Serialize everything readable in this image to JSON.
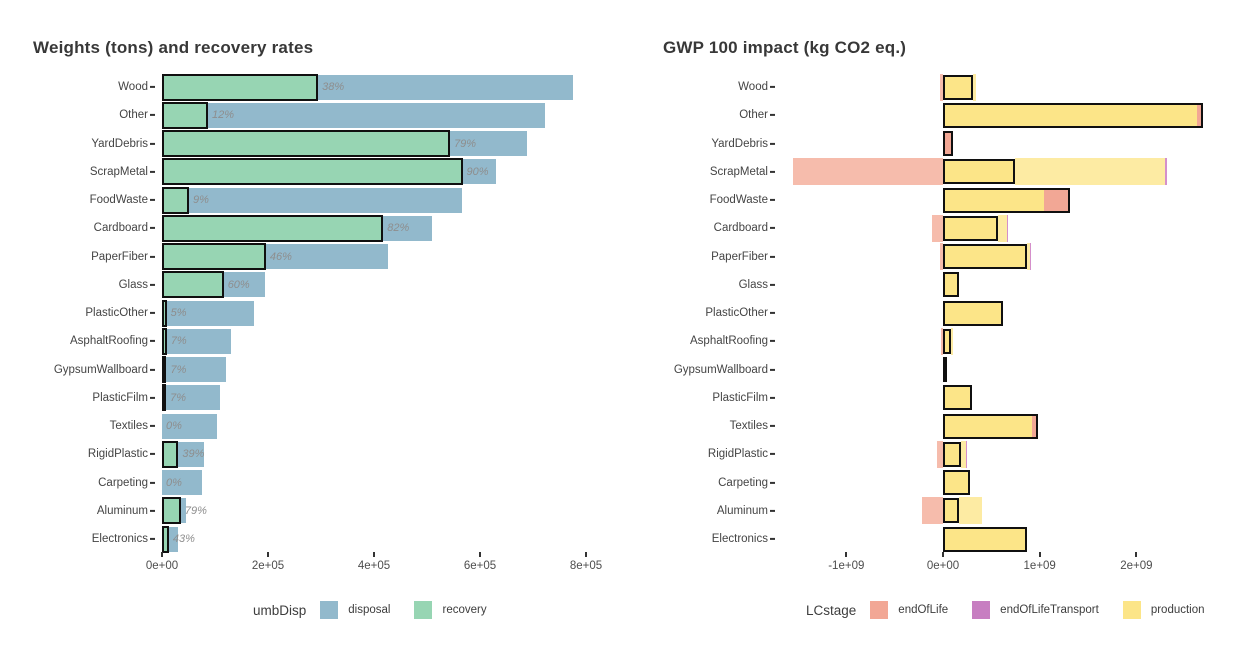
{
  "figure": {
    "background": "#ffffff",
    "text_color_title": "#383838",
    "text_color_axis": "#4d4d4d"
  },
  "chart_data": [
    {
      "id": "weights",
      "type": "bar",
      "orientation": "horizontal",
      "title": "Weights (tons) and recovery rates",
      "categories": [
        "Wood",
        "Other",
        "YardDebris",
        "ScrapMetal",
        "FoodWaste",
        "Cardboard",
        "PaperFiber",
        "Glass",
        "PlasticOther",
        "AsphaltRoofing",
        "GypsumWallboard",
        "PlasticFilm",
        "Textiles",
        "RigidPlastic",
        "Carpeting",
        "Aluminum",
        "Electronics"
      ],
      "series": [
        {
          "name": "disposal",
          "role": "total-weight-tons",
          "color": "#92B9CC",
          "values": [
            775000,
            723000,
            688000,
            630000,
            566000,
            509000,
            426000,
            194000,
            174000,
            130000,
            121000,
            110000,
            104000,
            79000,
            75000,
            45000,
            30000
          ]
        },
        {
          "name": "recovery",
          "role": "recovered-weight-tons (total × rate)",
          "color": "#97D5B3",
          "values": [
            294500,
            86760,
            543520,
            567000,
            50940,
            417380,
            195960,
            116400,
            8700,
            9100,
            8470,
            7700,
            0,
            30810,
            0,
            35550,
            12900
          ]
        }
      ],
      "recovery_rates": [
        0.38,
        0.12,
        0.79,
        0.9,
        0.09,
        0.82,
        0.46,
        0.6,
        0.05,
        0.07,
        0.07,
        0.07,
        0.0,
        0.39,
        0.0,
        0.79,
        0.43
      ],
      "bar_labels": [
        "38%",
        "12%",
        "79%",
        "90%",
        "9%",
        "82%",
        "46%",
        "60%",
        "5%",
        "7%",
        "7%",
        "7%",
        "0%",
        "39%",
        "0%",
        "79%",
        "43%"
      ],
      "x_ticks": [
        "0e+00",
        "2e+05",
        "4e+05",
        "6e+05",
        "8e+05"
      ],
      "x_tick_values": [
        0,
        200000,
        400000,
        600000,
        800000
      ],
      "xlim": [
        0,
        870000
      ],
      "grid": false,
      "legend": {
        "title": "umbDisp",
        "position": "bottom",
        "items": [
          {
            "label": "disposal",
            "color": "#92B9CC"
          },
          {
            "label": "recovery",
            "color": "#97D5B3"
          }
        ]
      }
    },
    {
      "id": "gwp",
      "type": "bar",
      "orientation": "horizontal",
      "title": "GWP 100 impact (kg CO2 eq.)",
      "categories": [
        "Wood",
        "Other",
        "YardDebris",
        "ScrapMetal",
        "FoodWaste",
        "Cardboard",
        "PaperFiber",
        "Glass",
        "PlasticOther",
        "AsphaltRoofing",
        "GypsumWallboard",
        "PlasticFilm",
        "Textiles",
        "RigidPlastic",
        "Carpeting",
        "Aluminum",
        "Electronics"
      ],
      "net_values": [
        310000000,
        2690000000,
        100000000,
        740000000,
        1310000000,
        570000000,
        870000000,
        165000000,
        620000000,
        80000000,
        30000000,
        300000000,
        980000000,
        190000000,
        280000000,
        170000000,
        870000000
      ],
      "rows": [
        {
          "category": "Wood",
          "net": 310000000,
          "bg": [
            {
              "stage": "endOfLife",
              "from": -30000000,
              "to": 0
            },
            {
              "stage": "production",
              "from": 310000000,
              "to": 340000000
            }
          ]
        },
        {
          "category": "Other",
          "net": 2690000000,
          "inner": [
            {
              "stage": "endOfLife",
              "from": 2630000000,
              "to": 2690000000
            }
          ]
        },
        {
          "category": "YardDebris",
          "net": 100000000,
          "composite": true,
          "inner": [
            {
              "stage": "endOfLifeTransport",
              "from": 0,
              "to": 30000000
            },
            {
              "stage": "endOfLife",
              "from": 30000000,
              "to": 100000000
            }
          ]
        },
        {
          "category": "ScrapMetal",
          "net": 740000000,
          "bg": [
            {
              "stage": "endOfLife",
              "from": -1550000000,
              "to": 0
            },
            {
              "stage": "production",
              "from": 740000000,
              "to": 2300000000
            },
            {
              "stage": "endOfLifeTransport",
              "from": 2300000000,
              "to": 2320000000
            }
          ]
        },
        {
          "category": "FoodWaste",
          "net": 1310000000,
          "inner": [
            {
              "stage": "endOfLife",
              "from": 1050000000,
              "to": 1310000000
            }
          ]
        },
        {
          "category": "Cardboard",
          "net": 570000000,
          "bg": [
            {
              "stage": "endOfLife",
              "from": -110000000,
              "to": 0
            },
            {
              "stage": "production",
              "from": 570000000,
              "to": 660000000
            },
            {
              "stage": "endOfLifeTransport",
              "from": 660000000,
              "to": 672000000
            }
          ]
        },
        {
          "category": "PaperFiber",
          "net": 870000000,
          "bg": [
            {
              "stage": "endOfLife",
              "from": -30000000,
              "to": 0
            },
            {
              "stage": "production",
              "from": 870000000,
              "to": 900000000
            },
            {
              "stage": "endOfLifeTransport",
              "from": 900000000,
              "to": 912000000
            }
          ]
        },
        {
          "category": "Glass",
          "net": 165000000
        },
        {
          "category": "PlasticOther",
          "net": 620000000
        },
        {
          "category": "AsphaltRoofing",
          "net": 80000000,
          "bg": [
            {
              "stage": "endOfLife",
              "from": -20000000,
              "to": 0
            },
            {
              "stage": "production",
              "from": 80000000,
              "to": 100000000
            }
          ]
        },
        {
          "category": "GypsumWallboard",
          "net": 30000000
        },
        {
          "category": "PlasticFilm",
          "net": 300000000
        },
        {
          "category": "Textiles",
          "net": 980000000,
          "inner": [
            {
              "stage": "endOfLife",
              "from": 930000000,
              "to": 980000000
            }
          ]
        },
        {
          "category": "RigidPlastic",
          "net": 190000000,
          "bg": [
            {
              "stage": "endOfLife",
              "from": -65000000,
              "to": 0
            },
            {
              "stage": "production",
              "from": 190000000,
              "to": 240000000
            },
            {
              "stage": "endOfLifeTransport",
              "from": 240000000,
              "to": 252000000
            }
          ]
        },
        {
          "category": "Carpeting",
          "net": 280000000
        },
        {
          "category": "Aluminum",
          "net": 170000000,
          "bg": [
            {
              "stage": "endOfLife",
              "from": -220000000,
              "to": 0
            },
            {
              "stage": "production",
              "from": 170000000,
              "to": 400000000
            }
          ]
        },
        {
          "category": "Electronics",
          "net": 870000000
        }
      ],
      "x_ticks": [
        "-1e+09",
        "0e+00",
        "1e+09",
        "2e+09"
      ],
      "x_tick_values": [
        -1000000000,
        0,
        1000000000,
        2000000000
      ],
      "xlim": [
        -1690000000,
        3100000000
      ],
      "grid": false,
      "stage_colors": {
        "endOfLife": "#F2A795",
        "endOfLifeTransport": "#C77EC1",
        "production": "#FCE588"
      },
      "stage_bg_colors": {
        "endOfLife": "#F6BCAC",
        "endOfLifeTransport": "#D48FCB",
        "production": "#FDEBA3"
      },
      "legend": {
        "title": "LCstage",
        "position": "bottom",
        "items": [
          {
            "label": "endOfLife",
            "color": "#F2A795"
          },
          {
            "label": "endOfLifeTransport",
            "color": "#C77EC1"
          },
          {
            "label": "production",
            "color": "#FCE588"
          }
        ]
      }
    }
  ]
}
